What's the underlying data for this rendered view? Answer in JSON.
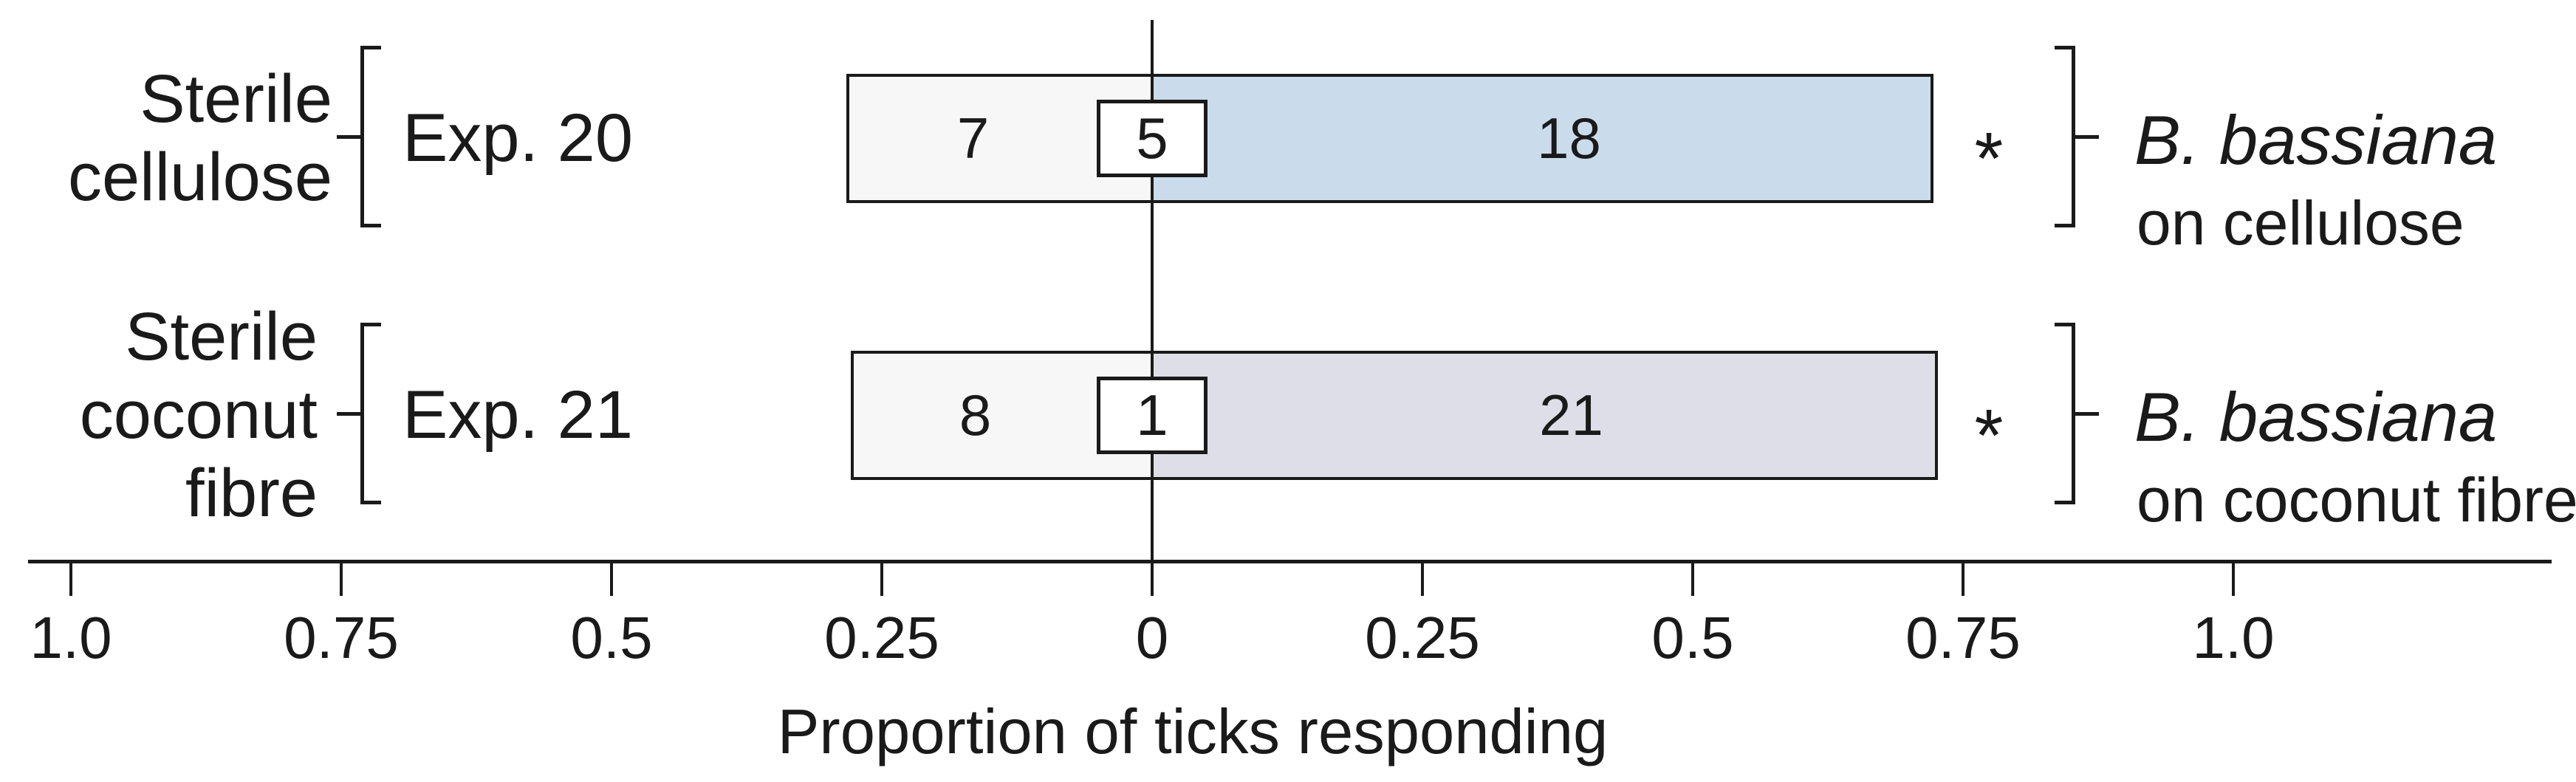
{
  "chart_data": {
    "type": "bar",
    "subtype": "diverging-stacked-choice-test",
    "xlabel": "Proportion of ticks responding",
    "axis": {
      "tick_values": [
        -1.0,
        -0.75,
        -0.5,
        -0.25,
        0,
        0.25,
        0.5,
        0.75,
        1.0
      ],
      "tick_labels": [
        "1.0",
        "0.75",
        "0.5",
        "0.25",
        "0",
        "0.25",
        "0.5",
        "0.75",
        "1.0"
      ],
      "line_color": "#1a1a1a"
    },
    "rows": [
      {
        "group_label_lines": [
          "Sterile",
          "cellulose"
        ],
        "exp_label": "Exp. 20",
        "counts": {
          "control_side": 7,
          "no_choice": 5,
          "treatment_side": 18
        },
        "proportions": {
          "control_side": 0.28,
          "treatment_side": 0.72
        },
        "significance": "*",
        "treatment_species": "B. bassiana",
        "treatment_substrate": "on cellulose",
        "colors": {
          "control_fill": "#f7f7f7",
          "treatment_fill": "#cadcec"
        }
      },
      {
        "group_label_lines": [
          "Sterile",
          "coconut",
          "fibre"
        ],
        "exp_label": "Exp. 21",
        "counts": {
          "control_side": 8,
          "no_choice": 1,
          "treatment_side": 21
        },
        "proportions": {
          "control_side": 0.276,
          "treatment_side": 0.724
        },
        "significance": "*",
        "treatment_species": "B. bassiana",
        "treatment_substrate": "on coconut fibre",
        "colors": {
          "control_fill": "#f7f7f7",
          "treatment_fill": "#dedee8"
        }
      }
    ]
  }
}
